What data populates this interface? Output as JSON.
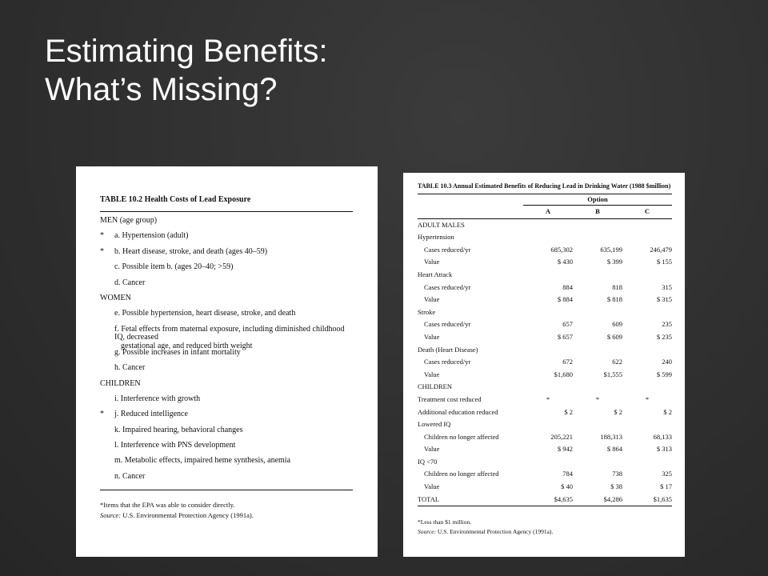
{
  "slide": {
    "title_line1": "Estimating Benefits:",
    "title_line2": "What’s Missing?"
  },
  "table_10_2": {
    "caption": "TABLE 10.2   Health Costs of Lead Exposure",
    "rows": [
      {
        "kind": "grp",
        "star": "",
        "text": "MEN (age group)"
      },
      {
        "kind": "item",
        "star": "*",
        "text": "a. Hypertension (adult)"
      },
      {
        "kind": "item",
        "star": "*",
        "text": "b. Heart disease, stroke, and death (ages 40–59)"
      },
      {
        "kind": "item",
        "star": "",
        "text": "c. Possible item b. (ages 20–40; >59)"
      },
      {
        "kind": "item",
        "star": "",
        "text": "d. Cancer"
      },
      {
        "kind": "grp",
        "star": "",
        "text": "WOMEN"
      },
      {
        "kind": "item",
        "star": "",
        "text": "e. Possible hypertension, heart disease, stroke, and death"
      },
      {
        "kind": "wrap",
        "star": "",
        "text": "f. Fetal effects from maternal exposure, including diminished childhood IQ, decreased",
        "cont": "gestational age, and reduced birth weight"
      },
      {
        "kind": "item",
        "star": "",
        "text": "g. Possible increases in infant mortality"
      },
      {
        "kind": "item",
        "star": "",
        "text": "h. Cancer"
      },
      {
        "kind": "grp",
        "star": "",
        "text": "CHILDREN"
      },
      {
        "kind": "item",
        "star": "",
        "text": "i. Interference with growth"
      },
      {
        "kind": "item",
        "star": "*",
        "text": "j. Reduced intelligence"
      },
      {
        "kind": "item",
        "star": "",
        "text": "k. Impaired hearing, behavioral changes"
      },
      {
        "kind": "item",
        "star": "",
        "text": "l. Interference with PNS development"
      },
      {
        "kind": "item",
        "star": "",
        "text": "m. Metabolic effects, impaired heme synthesis, anemia"
      },
      {
        "kind": "item",
        "star": "",
        "text": "n. Cancer"
      }
    ],
    "note1": "*Items that the EPA was able to consider directly.",
    "note2_label": "Source:",
    "note2_text": " U.S. Environmental Protection Agency (1991a)."
  },
  "table_10_3": {
    "caption": "TABLE 10.3   Annual Estimated Benefits of Reducing Lead in Drinking Water (1988 $million)",
    "option_label": "Option",
    "columns": [
      "A",
      "B",
      "C"
    ],
    "rows": [
      {
        "label": "ADULT MALES",
        "ind": false,
        "vals": [
          "",
          "",
          ""
        ]
      },
      {
        "label": "Hypertension",
        "ind": false,
        "vals": [
          "",
          "",
          ""
        ]
      },
      {
        "label": "Cases reduced/yr",
        "ind": true,
        "vals": [
          "685,302",
          "635,199",
          "246,479"
        ]
      },
      {
        "label": "Value",
        "ind": true,
        "vals": [
          "$ 430",
          "$ 399",
          "$ 155"
        ]
      },
      {
        "label": "Heart Attack",
        "ind": false,
        "vals": [
          "",
          "",
          ""
        ]
      },
      {
        "label": "Cases reduced/yr",
        "ind": true,
        "vals": [
          "884",
          "818",
          "315"
        ]
      },
      {
        "label": "Value",
        "ind": true,
        "vals": [
          "$ 884",
          "$ 818",
          "$ 315"
        ]
      },
      {
        "label": "Stroke",
        "ind": false,
        "vals": [
          "",
          "",
          ""
        ]
      },
      {
        "label": "Cases reduced/yr",
        "ind": true,
        "vals": [
          "657",
          "609",
          "235"
        ]
      },
      {
        "label": "Value",
        "ind": true,
        "vals": [
          "$ 657",
          "$ 609",
          "$ 235"
        ]
      },
      {
        "label": "Death (Heart Disease)",
        "ind": false,
        "vals": [
          "",
          "",
          ""
        ]
      },
      {
        "label": "Cases reduced/yr",
        "ind": true,
        "vals": [
          "672",
          "622",
          "240"
        ]
      },
      {
        "label": "Value",
        "ind": true,
        "vals": [
          "$1,680",
          "$1,555",
          "$ 599"
        ]
      },
      {
        "label": "CHILDREN",
        "ind": false,
        "vals": [
          "",
          "",
          ""
        ]
      },
      {
        "label": "Treatment cost reduced",
        "ind": false,
        "vals": [
          "*",
          "*",
          "*"
        ]
      },
      {
        "label": "Additional education reduced",
        "ind": false,
        "vals": [
          "$ 2",
          "$ 2",
          "$ 2"
        ]
      },
      {
        "label": "Lowered IQ",
        "ind": false,
        "vals": [
          "",
          "",
          ""
        ]
      },
      {
        "label": "Children no longer affected",
        "ind": true,
        "vals": [
          "205,221",
          "188,313",
          "68,133"
        ]
      },
      {
        "label": "Value",
        "ind": true,
        "vals": [
          "$ 942",
          "$ 864",
          "$ 313"
        ]
      },
      {
        "label": "IQ <70",
        "ind": false,
        "vals": [
          "",
          "",
          ""
        ]
      },
      {
        "label": "Children no longer affected",
        "ind": true,
        "vals": [
          "784",
          "738",
          "325"
        ]
      },
      {
        "label": "Value",
        "ind": true,
        "vals": [
          "$ 40",
          "$ 38",
          "$ 17"
        ]
      },
      {
        "label": "TOTAL",
        "ind": false,
        "vals": [
          "$4,635",
          "$4,286",
          "$1,635"
        ]
      }
    ],
    "note1": "*Less than $1 million.",
    "note2_label": "Source:",
    "note2_text": " U.S. Environmental Protection Agency (1991a)."
  }
}
